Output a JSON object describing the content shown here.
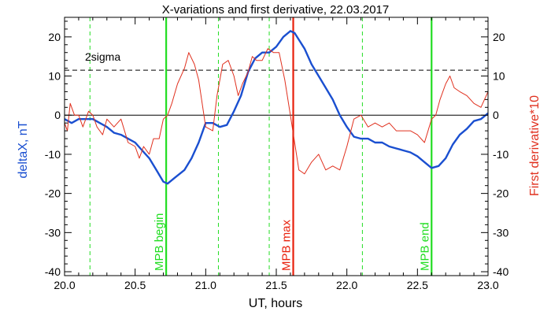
{
  "chart_data": {
    "type": "line",
    "title": "X-variations and first derivative, 22.03.2017",
    "xlabel": "UT, hours",
    "ylabel_left": "deltaX, nT",
    "ylabel_right": "First derivative*10",
    "xlim": [
      20.0,
      23.0
    ],
    "ylim": [
      -41,
      25
    ],
    "x_ticks": [
      "20.0",
      "20.5",
      "21.0",
      "21.5",
      "22.0",
      "22.5",
      "23.0"
    ],
    "y_ticks": [
      "20",
      "10",
      "0",
      "-10",
      "-20",
      "-30",
      "-40"
    ],
    "colors": {
      "deltaX": "#1a4fd0",
      "derivative": "#e0301e",
      "mpb_markers": "#22dd22",
      "mpb_max_marker": "#e8200c",
      "axes": "#000000"
    },
    "series": [
      {
        "key": "deltaX",
        "axis": "left",
        "x": [
          20.0,
          20.05,
          20.1,
          20.15,
          20.2,
          20.25,
          20.3,
          20.35,
          20.4,
          20.45,
          20.5,
          20.55,
          20.6,
          20.65,
          20.7,
          20.73,
          20.78,
          20.85,
          20.9,
          20.95,
          21.0,
          21.05,
          21.1,
          21.15,
          21.2,
          21.25,
          21.3,
          21.35,
          21.4,
          21.45,
          21.5,
          21.55,
          21.6,
          21.63,
          21.7,
          21.75,
          21.8,
          21.85,
          21.9,
          21.95,
          22.0,
          22.05,
          22.1,
          22.15,
          22.2,
          22.25,
          22.3,
          22.35,
          22.4,
          22.45,
          22.5,
          22.55,
          22.6,
          22.65,
          22.7,
          22.75,
          22.8,
          22.85,
          22.9,
          22.95,
          23.0
        ],
        "y": [
          -1,
          -2,
          -1,
          -1,
          -1,
          -2,
          -3,
          -4.5,
          -5,
          -6,
          -7,
          -9,
          -11,
          -14,
          -17,
          -17.5,
          -16,
          -14,
          -11,
          -7,
          -2,
          -2,
          -3,
          -2.5,
          1,
          5,
          11,
          14.5,
          16,
          16,
          17.5,
          20,
          21.5,
          21,
          17,
          13,
          10,
          7,
          4,
          0,
          -3,
          -5.5,
          -6,
          -6,
          -7,
          -7,
          -8,
          -8.5,
          -9,
          -9.5,
          -10.5,
          -12,
          -13.5,
          -13,
          -11,
          -7.5,
          -5,
          -3.5,
          -1.5,
          -1,
          0.5
        ]
      },
      {
        "key": "derivative",
        "axis": "right",
        "x": [
          20.0,
          20.02,
          20.04,
          20.07,
          20.1,
          20.13,
          20.17,
          20.2,
          20.23,
          20.27,
          20.3,
          20.35,
          20.4,
          20.45,
          20.5,
          20.53,
          20.56,
          20.6,
          20.63,
          20.67,
          20.7,
          20.73,
          20.76,
          20.8,
          20.85,
          20.88,
          20.92,
          20.95,
          21.0,
          21.05,
          21.08,
          21.12,
          21.16,
          21.2,
          21.23,
          21.26,
          21.3,
          21.33,
          21.36,
          21.4,
          21.44,
          21.48,
          21.52,
          21.56,
          21.6,
          21.63,
          21.66,
          21.7,
          21.75,
          21.8,
          21.85,
          21.9,
          21.95,
          22.0,
          22.05,
          22.1,
          22.15,
          22.2,
          22.25,
          22.3,
          22.35,
          22.4,
          22.45,
          22.5,
          22.55,
          22.6,
          22.63,
          22.66,
          22.7,
          22.73,
          22.76,
          22.8,
          22.85,
          22.9,
          22.95,
          23.0
        ],
        "y": [
          -2,
          -4,
          3,
          0,
          0,
          -3,
          1,
          0,
          -3,
          -5,
          -1,
          -3,
          -1,
          -7,
          -8,
          -11,
          -8,
          -10,
          -6,
          -6,
          -1,
          0,
          3,
          8,
          12,
          16,
          13,
          9,
          -3,
          -4,
          5,
          13,
          14,
          10,
          5,
          8,
          11,
          15,
          14,
          14,
          17,
          16,
          16,
          9,
          0,
          -7,
          -14,
          -15,
          -12,
          -10,
          -14,
          -13,
          -14,
          -8,
          -1,
          0,
          -3,
          -2,
          -3,
          -2,
          -4,
          -4,
          -4,
          -5,
          -7,
          -1,
          0,
          4,
          8,
          10,
          7,
          6,
          5,
          3,
          2,
          6
        ]
      }
    ],
    "reference_lines": {
      "threshold_label": "2sigma",
      "threshold_value": 11.5,
      "zero_value": 0
    },
    "vertical_markers": [
      {
        "label": "MPB begin",
        "x": 20.72,
        "color": "#22dd22"
      },
      {
        "label": "MPB max",
        "x": 21.62,
        "color": "#e8200c"
      },
      {
        "label": "MPB end",
        "x": 22.6,
        "color": "#22dd22"
      }
    ],
    "dashed_markers_x": [
      20.18,
      21.09,
      21.45,
      22.11
    ],
    "grid": false,
    "legend": "none"
  }
}
